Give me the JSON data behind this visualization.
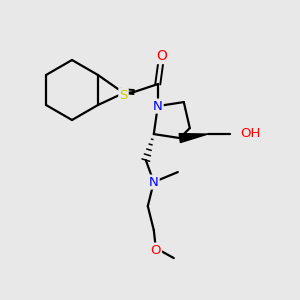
{
  "background_color": "#e8e8e8",
  "atom_colors": {
    "C": "#000000",
    "N": "#0000ff",
    "O": "#ff0000",
    "S": "#cccc00",
    "H": "#00aaaa"
  },
  "figsize": [
    3.0,
    3.0
  ],
  "dpi": 100
}
